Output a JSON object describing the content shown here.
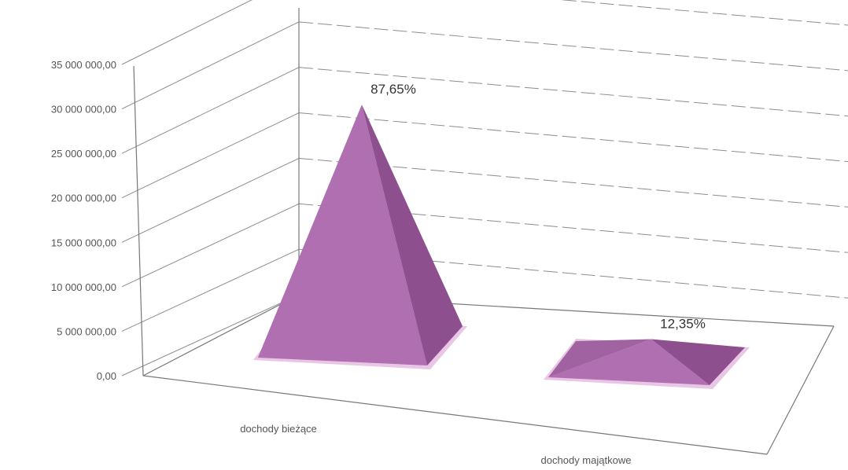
{
  "chart_data": {
    "type": "bar",
    "shape": "3d-pyramid",
    "categories": [
      "dochody bieżące",
      "dochody majątkowe"
    ],
    "values": [
      30700000,
      4330000
    ],
    "data_labels": [
      "87,65%",
      "12,35%"
    ],
    "y_ticks": [
      "0,00",
      "5 000 000,00",
      "10 000 000,00",
      "15 000 000,00",
      "20 000 000,00",
      "25 000 000,00",
      "30 000 000,00",
      "35 000 000,00"
    ],
    "ylim": [
      0,
      35000000
    ],
    "grid": true,
    "legend": "none",
    "colors": {
      "bar_front": "#b06fb0",
      "bar_side": "#8e4f8e",
      "bar_base": "#e9c6e5",
      "grid": "#8c8c8c"
    }
  }
}
